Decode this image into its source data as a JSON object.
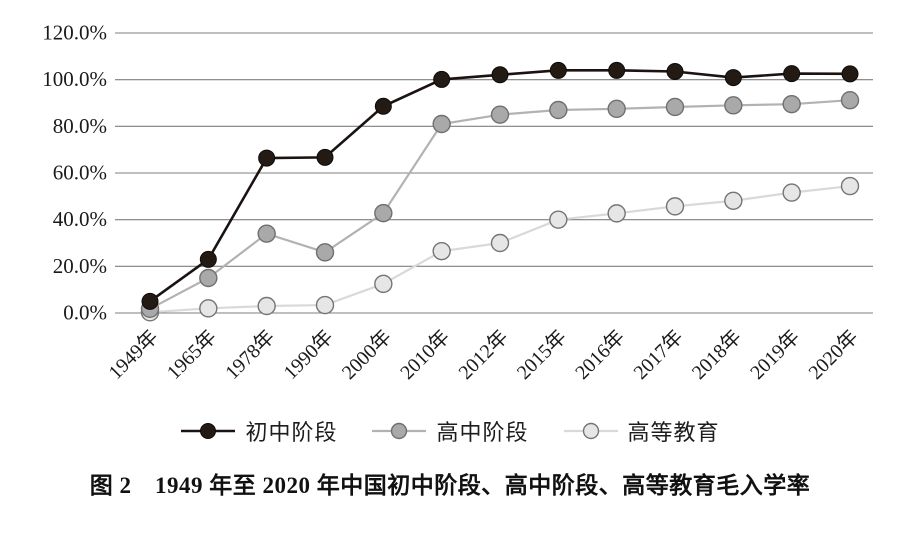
{
  "figure": {
    "caption": "图 2　1949 年至 2020 年中国初中阶段、高中阶段、高等教育毛入学率"
  },
  "chart_data": {
    "type": "line",
    "title": "",
    "xlabel": "",
    "ylabel": "",
    "categories": [
      "1949年",
      "1965年",
      "1978年",
      "1990年",
      "2000年",
      "2010年",
      "2012年",
      "2015年",
      "2016年",
      "2017年",
      "2018年",
      "2019年",
      "2020年"
    ],
    "series": [
      {
        "name": "初中阶段",
        "values": [
          5.0,
          23.0,
          66.4,
          66.7,
          88.6,
          100.1,
          102.1,
          104.0,
          104.0,
          103.5,
          100.9,
          102.6,
          102.5
        ],
        "line_color": "#1a1311",
        "marker_fill": "#241a14",
        "marker_stroke": "#0e0a08"
      },
      {
        "name": "高中阶段",
        "values": [
          1.8,
          15.0,
          34.0,
          26.0,
          42.8,
          81.0,
          85.0,
          87.0,
          87.5,
          88.3,
          89.0,
          89.5,
          91.2
        ],
        "line_color": "#b2b2b2",
        "marker_fill": "#a9a9a9",
        "marker_stroke": "#707070"
      },
      {
        "name": "高等教育",
        "values": [
          0.3,
          2.0,
          3.0,
          3.4,
          12.5,
          26.5,
          30.0,
          40.0,
          42.7,
          45.7,
          48.1,
          51.6,
          54.4
        ],
        "line_color": "#d9d9d9",
        "marker_fill": "#e6e6e6",
        "marker_stroke": "#757575"
      }
    ],
    "ylim": [
      0,
      120
    ],
    "ytick_step": 20,
    "ytick_labels": [
      "0.0%",
      "20.0%",
      "40.0%",
      "60.0%",
      "80.0%",
      "100.0%",
      "120.0%"
    ],
    "grid": "horizontal",
    "gridline_color": "#7f7f7f",
    "legend_position": "bottom",
    "unit": "percent"
  }
}
